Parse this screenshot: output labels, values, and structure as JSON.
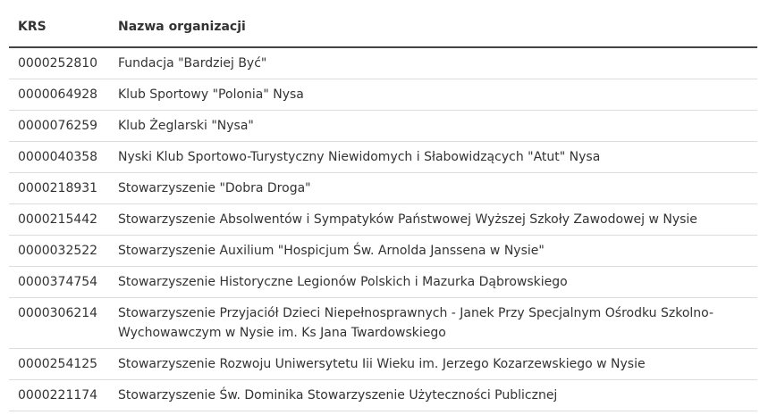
{
  "table": {
    "header": [
      "KRS",
      "Nazwa organizacji"
    ],
    "rows": [
      [
        "0000252810",
        "Fundacja \"Bardziej Być\""
      ],
      [
        "0000064928",
        "Klub Sportowy \"Polonia\" Nysa"
      ],
      [
        "0000076259",
        "Klub Żeglarski \"Nysa\""
      ],
      [
        "0000040358",
        "Nyski Klub Sportowo-Turystyczny Niewidomych i Słabowidzących \"Atut\" Nysa"
      ],
      [
        "0000218931",
        "Stowarzyszenie \"Dobra Droga\""
      ],
      [
        "0000215442",
        "Stowarzyszenie Absolwentów i Sympatyków Państwowej Wyższej Szkoły Zawodowej w Nysie"
      ],
      [
        "0000032522",
        "Stowarzyszenie Auxilium \"Hospicjum Św. Arnolda Janssena w Nysie\""
      ],
      [
        "0000374754",
        "Stowarzyszenie Historyczne Legionów Polskich i Mazurka Dąbrowskiego"
      ],
      [
        "0000306214",
        "Stowarzyszenie Przyjaciół Dzieci Niepełnosprawnych - Janek Przy Specjalnym Ośrodku Szkolno-Wychowawczym w Nysie im. Ks Jana Twardowskiego"
      ],
      [
        "0000254125",
        "Stowarzyszenie Rozwoju Uniwersytetu Iii Wieku im. Jerzego Kozarzewskiego w Nysie"
      ],
      [
        "0000221174",
        "Stowarzyszenie Św. Dominika Stowarzyszenie Użyteczności Publicznej"
      ]
    ]
  }
}
